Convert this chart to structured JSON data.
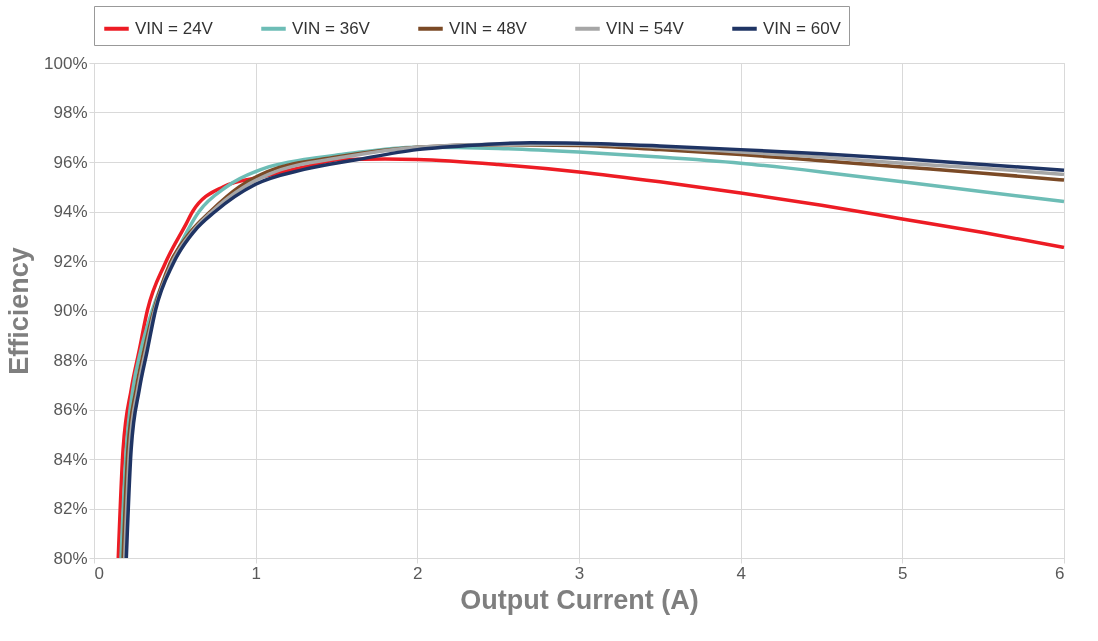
{
  "chart_data": {
    "type": "line",
    "xlabel": "Output Current (A)",
    "ylabel": "Efficiency",
    "xlim": [
      0,
      6
    ],
    "xticks": [
      0,
      1,
      2,
      3,
      4,
      5,
      6
    ],
    "ylim": [
      80,
      100
    ],
    "yticks": [
      {
        "value": 80,
        "label": "80%"
      },
      {
        "value": 82,
        "label": "82%"
      },
      {
        "value": 84,
        "label": "84%"
      },
      {
        "value": 86,
        "label": "86%"
      },
      {
        "value": 88,
        "label": "88%"
      },
      {
        "value": 90,
        "label": "90%"
      },
      {
        "value": 92,
        "label": "92%"
      },
      {
        "value": 94,
        "label": "94%"
      },
      {
        "value": 96,
        "label": "96%"
      },
      {
        "value": 98,
        "label": "98%"
      },
      {
        "value": 100,
        "label": "100%"
      }
    ],
    "grid": true,
    "legend": "top",
    "marker": "none",
    "line_style": "solid",
    "series": [
      {
        "name": "VIN = 24V",
        "color": "#ed1c24",
        "x": [
          0.15,
          0.18,
          0.23,
          0.28,
          0.33,
          0.44,
          0.57,
          0.61,
          0.8,
          1.04,
          1.3,
          1.53,
          1.8,
          2,
          2.5,
          3,
          3.5,
          4,
          4.5,
          5,
          5.5,
          6
        ],
        "values": [
          80,
          84.4,
          86.8,
          88.4,
          90,
          91.9,
          93.5,
          94,
          95,
          95.4,
          95.8,
          96.1,
          96.12,
          96.1,
          95.9,
          95.6,
          95.2,
          94.75,
          94.25,
          93.7,
          93.15,
          92.55
        ]
      },
      {
        "name": "VIN = 36V",
        "color": "#6dbdb6",
        "x": [
          0.167,
          0.2,
          0.24,
          0.29,
          0.36,
          0.48,
          0.65,
          0.82,
          1.08,
          1.3,
          1.53,
          2,
          2.5,
          3,
          3.5,
          4,
          4.5,
          5,
          5.5,
          6
        ],
        "values": [
          80,
          84.4,
          86.8,
          88.4,
          90,
          91.9,
          94,
          95,
          95.8,
          96.1,
          96.3,
          96.6,
          96.55,
          96.4,
          96.2,
          95.95,
          95.6,
          95.2,
          94.8,
          94.4
        ]
      },
      {
        "name": "VIN = 48V",
        "color": "#7b4a26",
        "x": [
          0.18,
          0.21,
          0.26,
          0.31,
          0.37,
          0.47,
          0.6,
          0.72,
          0.9,
          1.07,
          1.5,
          2,
          2.5,
          3,
          3.5,
          4,
          4.5,
          5,
          5.5,
          6
        ],
        "values": [
          80,
          84.4,
          86.8,
          88.4,
          90,
          91.9,
          93.2,
          94,
          95,
          95.6,
          96.2,
          96.6,
          96.7,
          96.67,
          96.5,
          96.3,
          96.05,
          95.8,
          95.55,
          95.27
        ]
      },
      {
        "name": "VIN = 54V",
        "color": "#a6a6a6",
        "x": [
          0.19,
          0.22,
          0.27,
          0.32,
          0.375,
          0.48,
          0.61,
          0.73,
          0.93,
          1.08,
          1.55,
          2,
          2.5,
          3,
          3.5,
          4,
          4.5,
          5,
          5.5,
          6
        ],
        "values": [
          80,
          84.4,
          86.8,
          88.4,
          90,
          91.9,
          93.2,
          94,
          95,
          95.5,
          96.2,
          96.6,
          96.72,
          96.72,
          96.6,
          96.4,
          96.2,
          95.95,
          95.75,
          95.5
        ]
      },
      {
        "name": "VIN = 60V",
        "color": "#1f3464",
        "x": [
          0.2,
          0.23,
          0.28,
          0.33,
          0.38,
          0.49,
          0.62,
          0.75,
          1,
          1.3,
          1.63,
          2,
          2.4,
          2.7,
          3,
          3.5,
          4,
          4.5,
          5,
          5.5,
          6
        ],
        "values": [
          80,
          84.4,
          86.8,
          88.4,
          90,
          91.9,
          93.2,
          94,
          95.1,
          95.7,
          96.1,
          96.5,
          96.7,
          96.78,
          96.76,
          96.65,
          96.5,
          96.33,
          96.13,
          95.9,
          95.67
        ]
      }
    ]
  }
}
